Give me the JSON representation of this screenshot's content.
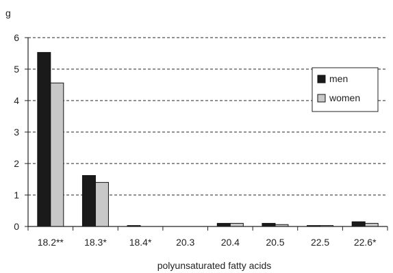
{
  "chart_data": {
    "type": "bar",
    "ylabel": "g",
    "xlabel": "polyunsaturated fatty acids",
    "categories": [
      "18.2**",
      "18.3*",
      "18.4*",
      "20.3",
      "20.4",
      "20.5",
      "22.5",
      "22.6*"
    ],
    "series": [
      {
        "name": "men",
        "color": "#1a1a1a",
        "values": [
          5.53,
          1.62,
          0.03,
          0.0,
          0.1,
          0.1,
          0.03,
          0.15
        ]
      },
      {
        "name": "women",
        "color": "#c8c8c8",
        "values": [
          4.56,
          1.4,
          0.0,
          0.0,
          0.1,
          0.06,
          0.03,
          0.1
        ]
      }
    ],
    "ylim": [
      0,
      6
    ],
    "yticks": [
      "0",
      "1",
      "2",
      "3",
      "4",
      "5",
      "6"
    ],
    "grid": "horizontal-dashed",
    "legend": "top-right"
  }
}
